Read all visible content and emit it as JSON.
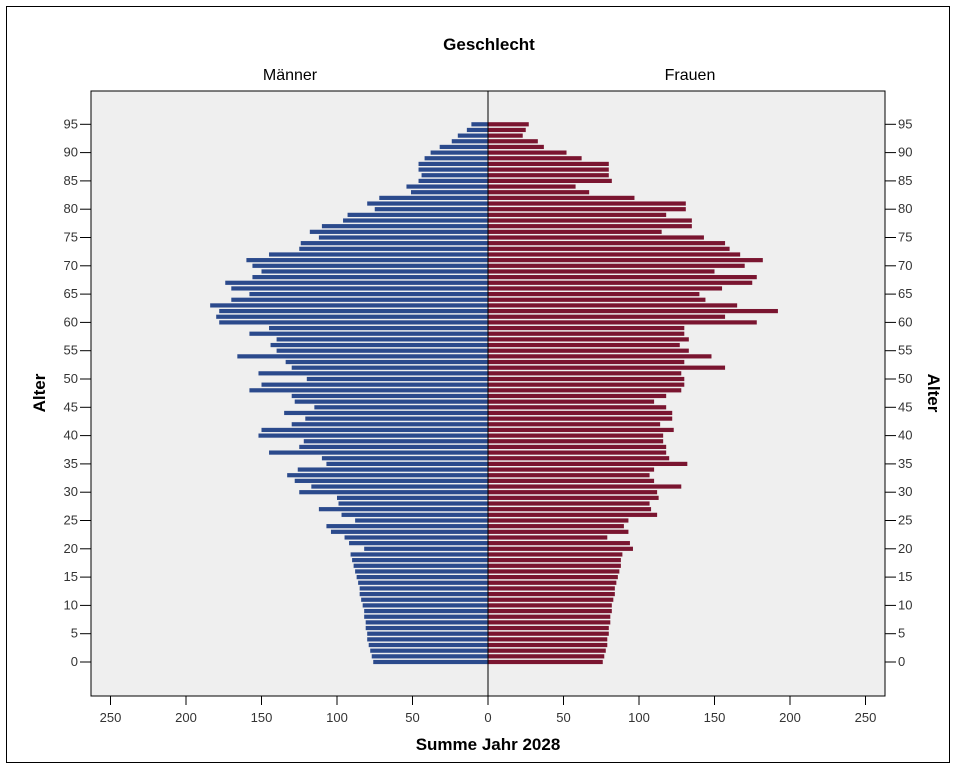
{
  "chart_data": {
    "type": "bar",
    "subtype": "population-pyramid",
    "title": "Geschlecht",
    "panels": [
      "Männer",
      "Frauen"
    ],
    "xlabel": "Summe Jahr 2028",
    "ylabel": "Alter",
    "xlim": [
      -260,
      260
    ],
    "x_ticks": [
      250,
      200,
      150,
      100,
      50,
      0,
      50,
      100,
      150,
      200,
      250
    ],
    "y_ticks": [
      0,
      5,
      10,
      15,
      20,
      25,
      30,
      35,
      40,
      45,
      50,
      55,
      60,
      65,
      70,
      75,
      80,
      85,
      90,
      95
    ],
    "ages": [
      0,
      1,
      2,
      3,
      4,
      5,
      6,
      7,
      8,
      9,
      10,
      11,
      12,
      13,
      14,
      15,
      16,
      17,
      18,
      19,
      20,
      21,
      22,
      23,
      24,
      25,
      26,
      27,
      28,
      29,
      30,
      31,
      32,
      33,
      34,
      35,
      36,
      37,
      38,
      39,
      40,
      41,
      42,
      43,
      44,
      45,
      46,
      47,
      48,
      49,
      50,
      51,
      52,
      53,
      54,
      55,
      56,
      57,
      58,
      59,
      60,
      61,
      62,
      63,
      64,
      65,
      66,
      67,
      68,
      69,
      70,
      71,
      72,
      73,
      74,
      75,
      76,
      77,
      78,
      79,
      80,
      81,
      82,
      83,
      84,
      85,
      86,
      87,
      88,
      89,
      90,
      91,
      92,
      93,
      94,
      95
    ],
    "series": [
      {
        "name": "Männer",
        "color": "#2b4a8c",
        "values": [
          76,
          77,
          78,
          79,
          80,
          80,
          81,
          81,
          82,
          82,
          83,
          84,
          85,
          85,
          86,
          87,
          88,
          89,
          90,
          91,
          82,
          92,
          95,
          104,
          107,
          88,
          97,
          112,
          99,
          100,
          125,
          117,
          128,
          133,
          126,
          107,
          110,
          145,
          125,
          122,
          152,
          150,
          130,
          121,
          135,
          115,
          128,
          130,
          158,
          150,
          120,
          152,
          130,
          134,
          166,
          140,
          144,
          140,
          158,
          145,
          178,
          180,
          178,
          184,
          170,
          158,
          170,
          174,
          156,
          150,
          156,
          160,
          145,
          125,
          124,
          112,
          118,
          110,
          96,
          93,
          75,
          80,
          72,
          51,
          54,
          46,
          44,
          46,
          46,
          42,
          38,
          32,
          24,
          20,
          14,
          11
        ]
      },
      {
        "name": "Frauen",
        "color": "#7a1530",
        "values": [
          76,
          77,
          78,
          79,
          79,
          80,
          80,
          81,
          81,
          82,
          82,
          83,
          84,
          84,
          85,
          86,
          87,
          88,
          88,
          89,
          96,
          94,
          79,
          93,
          90,
          93,
          112,
          108,
          107,
          113,
          112,
          128,
          110,
          107,
          110,
          132,
          120,
          118,
          118,
          116,
          116,
          123,
          114,
          122,
          122,
          118,
          110,
          118,
          128,
          130,
          130,
          128,
          157,
          130,
          148,
          133,
          127,
          133,
          130,
          130,
          178,
          157,
          192,
          165,
          144,
          140,
          155,
          175,
          178,
          150,
          170,
          182,
          167,
          160,
          157,
          143,
          115,
          135,
          135,
          118,
          131,
          131,
          97,
          67,
          58,
          82,
          80,
          80,
          80,
          62,
          52,
          37,
          33,
          23,
          25,
          27
        ]
      }
    ]
  }
}
